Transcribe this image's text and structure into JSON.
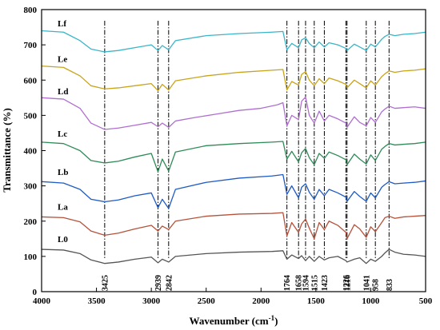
{
  "chart_data": {
    "type": "line",
    "title": "",
    "xlabel": "Wavenumber (cm",
    "xlabel_sup": "-1",
    "xlabel_end": ")",
    "ylabel": "Transmittance (%)",
    "xlim": [
      4000,
      500
    ],
    "ylim": [
      0,
      800
    ],
    "x_ticks": [
      4000,
      3500,
      3000,
      2500,
      2000,
      1500,
      1000,
      500
    ],
    "y_ticks": [
      0,
      100,
      200,
      300,
      400,
      500,
      600,
      700,
      800
    ],
    "grid": false,
    "legend": "inline-left",
    "markers": [
      3425,
      2939,
      2842,
      1764,
      1658,
      1594,
      1515,
      1423,
      1226,
      1216,
      1041,
      958,
      833
    ],
    "series": [
      {
        "name": "L0",
        "color": "#555555",
        "label_y": 140,
        "x": [
          4000,
          3800,
          3650,
          3550,
          3425,
          3300,
          3150,
          3000,
          2939,
          2900,
          2842,
          2780,
          2500,
          2200,
          1900,
          1800,
          1764,
          1720,
          1658,
          1630,
          1594,
          1560,
          1515,
          1470,
          1423,
          1380,
          1300,
          1226,
          1216,
          1150,
          1100,
          1041,
          1000,
          958,
          900,
          870,
          833,
          780,
          700,
          600,
          500
        ],
        "y": [
          120,
          118,
          108,
          90,
          80,
          84,
          92,
          98,
          82,
          92,
          84,
          100,
          108,
          112,
          114,
          116,
          92,
          104,
          94,
          102,
          88,
          100,
          86,
          100,
          90,
          96,
          100,
          88,
          84,
          92,
          96,
          80,
          92,
          86,
          100,
          110,
          120,
          112,
          106,
          104,
          100
        ]
      },
      {
        "name": "La",
        "color": "#b5523b",
        "label_y": 232,
        "x": [
          4000,
          3800,
          3650,
          3550,
          3425,
          3300,
          3150,
          3000,
          2939,
          2900,
          2842,
          2780,
          2500,
          2200,
          1900,
          1800,
          1764,
          1720,
          1658,
          1630,
          1594,
          1560,
          1515,
          1470,
          1423,
          1380,
          1300,
          1226,
          1216,
          1150,
          1100,
          1041,
          1000,
          958,
          900,
          870,
          833,
          780,
          700,
          600,
          500
        ],
        "y": [
          212,
          210,
          198,
          172,
          160,
          166,
          178,
          188,
          172,
          186,
          176,
          200,
          214,
          220,
          222,
          224,
          158,
          196,
          168,
          192,
          206,
          180,
          150,
          196,
          176,
          200,
          188,
          168,
          150,
          190,
          178,
          154,
          184,
          170,
          196,
          210,
          214,
          208,
          212,
          214,
          216
        ]
      },
      {
        "name": "Lb",
        "color": "#1f5bc4",
        "label_y": 331,
        "x": [
          4000,
          3800,
          3650,
          3550,
          3425,
          3300,
          3150,
          3000,
          2939,
          2900,
          2842,
          2780,
          2500,
          2200,
          1900,
          1800,
          1764,
          1720,
          1658,
          1630,
          1594,
          1560,
          1515,
          1470,
          1423,
          1380,
          1300,
          1226,
          1216,
          1150,
          1100,
          1041,
          1000,
          958,
          900,
          870,
          833,
          780,
          700,
          600,
          500
        ],
        "y": [
          312,
          308,
          290,
          262,
          255,
          260,
          272,
          280,
          238,
          262,
          236,
          290,
          310,
          322,
          328,
          332,
          276,
          300,
          266,
          296,
          306,
          282,
          262,
          290,
          272,
          290,
          280,
          268,
          256,
          284,
          270,
          256,
          280,
          266,
          296,
          304,
          312,
          306,
          308,
          310,
          314
        ]
      },
      {
        "name": "Lc",
        "color": "#2e8b57",
        "label_y": 440,
        "x": [
          4000,
          3800,
          3650,
          3550,
          3425,
          3300,
          3150,
          3000,
          2939,
          2900,
          2842,
          2780,
          2500,
          2200,
          1900,
          1800,
          1764,
          1720,
          1658,
          1630,
          1594,
          1560,
          1515,
          1470,
          1423,
          1380,
          1300,
          1226,
          1216,
          1150,
          1100,
          1041,
          1000,
          958,
          900,
          870,
          833,
          780,
          700,
          600,
          500
        ],
        "y": [
          424,
          420,
          400,
          372,
          365,
          370,
          382,
          392,
          340,
          376,
          342,
          396,
          414,
          420,
          424,
          426,
          376,
          398,
          368,
          394,
          406,
          380,
          360,
          392,
          378,
          396,
          386,
          374,
          360,
          390,
          376,
          362,
          388,
          372,
          404,
          412,
          420,
          416,
          418,
          420,
          424
        ]
      },
      {
        "name": "Ld",
        "color": "#b06fd0",
        "label_y": 560,
        "x": [
          4000,
          3800,
          3650,
          3550,
          3425,
          3300,
          3150,
          3000,
          2939,
          2900,
          2842,
          2780,
          2600,
          2400,
          2200,
          2000,
          1850,
          1800,
          1764,
          1720,
          1658,
          1630,
          1594,
          1560,
          1515,
          1470,
          1423,
          1380,
          1300,
          1226,
          1216,
          1150,
          1100,
          1041,
          1000,
          958,
          900,
          870,
          833,
          780,
          700,
          600,
          500
        ],
        "y": [
          550,
          546,
          520,
          478,
          460,
          464,
          472,
          480,
          468,
          478,
          466,
          484,
          494,
          504,
          514,
          520,
          530,
          536,
          470,
          500,
          488,
          540,
          552,
          500,
          478,
          512,
          484,
          500,
          490,
          478,
          466,
          496,
          480,
          470,
          494,
          480,
          510,
          518,
          526,
          520,
          522,
          524,
          520
        ]
      },
      {
        "name": "Le",
        "color": "#c8a41a",
        "label_y": 652,
        "x": [
          4000,
          3800,
          3650,
          3550,
          3425,
          3300,
          3150,
          3000,
          2939,
          2900,
          2842,
          2780,
          2500,
          2200,
          1900,
          1800,
          1764,
          1720,
          1658,
          1630,
          1594,
          1560,
          1515,
          1470,
          1423,
          1380,
          1300,
          1226,
          1216,
          1150,
          1100,
          1041,
          1000,
          958,
          900,
          870,
          833,
          780,
          700,
          600,
          500
        ],
        "y": [
          640,
          636,
          612,
          584,
          575,
          578,
          584,
          590,
          570,
          588,
          572,
          598,
          612,
          622,
          628,
          630,
          572,
          596,
          586,
          616,
          624,
          600,
          584,
          604,
          590,
          606,
          598,
          588,
          578,
          600,
          590,
          578,
          598,
          586,
          610,
          618,
          626,
          622,
          626,
          628,
          632
        ]
      },
      {
        "name": "Lf",
        "color": "#3ab5c8",
        "label_y": 752,
        "x": [
          4000,
          3800,
          3650,
          3550,
          3425,
          3300,
          3150,
          3000,
          2939,
          2900,
          2842,
          2780,
          2500,
          2200,
          1900,
          1800,
          1764,
          1720,
          1658,
          1630,
          1594,
          1560,
          1515,
          1470,
          1423,
          1380,
          1300,
          1226,
          1216,
          1150,
          1100,
          1041,
          1000,
          958,
          900,
          870,
          833,
          780,
          700,
          600,
          500
        ],
        "y": [
          740,
          736,
          712,
          688,
          680,
          684,
          692,
          700,
          684,
          698,
          686,
          712,
          726,
          732,
          736,
          738,
          686,
          704,
          692,
          714,
          720,
          704,
          692,
          708,
          694,
          706,
          700,
          690,
          684,
          702,
          694,
          684,
          702,
          694,
          716,
          724,
          730,
          726,
          730,
          732,
          736
        ]
      }
    ]
  }
}
